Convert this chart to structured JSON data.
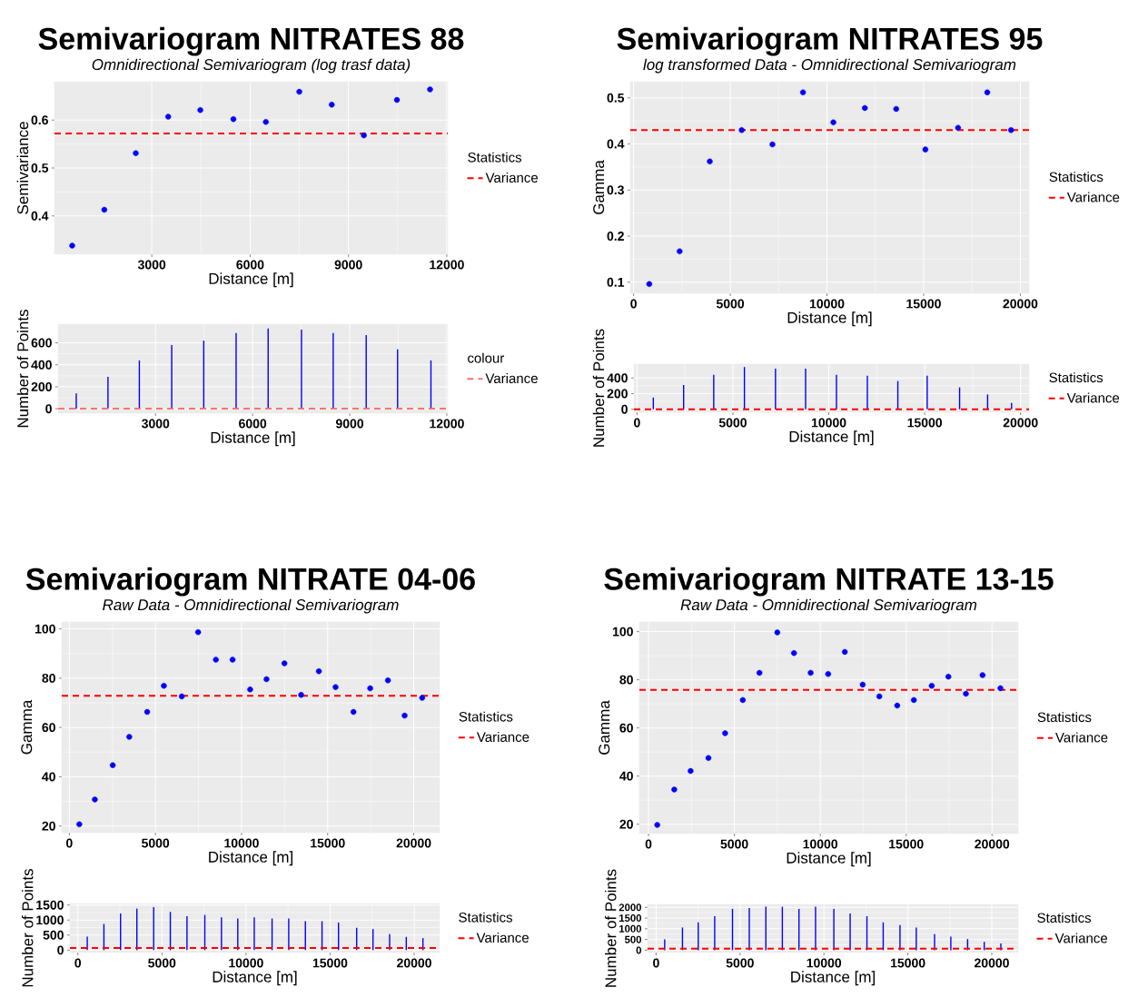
{
  "chart_data": [
    {
      "type": "scatter",
      "title": "Semivariogram NITRATES 88",
      "subtitle": "Omnidirectional Semivariogram (log trasf data)",
      "xlabel": "Distance [m]",
      "ylabel": "Semivariance",
      "legend_title": "Statistics",
      "legend": "right",
      "grid": true,
      "marker": "circle",
      "color": "#0000ff",
      "x": [
        570,
        1550,
        2510,
        3500,
        4480,
        5490,
        6480,
        7500,
        8490,
        9470,
        10480,
        11490
      ],
      "values": [
        0.338,
        0.413,
        0.531,
        0.607,
        0.621,
        0.602,
        0.596,
        0.659,
        0.632,
        0.568,
        0.642,
        0.664
      ],
      "xlim": [
        30,
        12030
      ],
      "ylim": [
        0.32,
        0.68
      ],
      "xticks": [
        3000,
        6000,
        9000,
        12000
      ],
      "yticks": [
        0.4,
        0.5,
        0.6
      ],
      "ref_lines": [
        {
          "axis": "y",
          "value": 0.572,
          "label": "Variance",
          "color": "#ff0000",
          "line_style": "dashed"
        }
      ]
    },
    {
      "type": "scatter",
      "title": "Semivariogram NITRATES 95",
      "subtitle": "log transformed Data - Omnidirectional Semivariogram",
      "xlabel": "Distance [m]",
      "ylabel": "Gamma",
      "legend_title": "Statistics",
      "legend": "right",
      "grid": true,
      "marker": "circle",
      "color": "#0000ff",
      "x": [
        810,
        2380,
        3940,
        5590,
        7180,
        8760,
        10330,
        11960,
        13580,
        15090,
        16780,
        18290,
        19520
      ],
      "values": [
        0.096,
        0.167,
        0.362,
        0.43,
        0.399,
        0.512,
        0.447,
        0.478,
        0.476,
        0.388,
        0.435,
        0.512,
        0.43
      ],
      "xlim": [
        -170,
        20450
      ],
      "ylim": [
        0.076,
        0.535
      ],
      "xticks": [
        0,
        5000,
        10000,
        15000,
        20000
      ],
      "yticks": [
        0.1,
        0.2,
        0.3,
        0.4,
        0.5
      ],
      "ref_lines": [
        {
          "axis": "y",
          "value": 0.43,
          "label": "Variance",
          "color": "#ff0000",
          "line_style": "dashed"
        }
      ]
    },
    {
      "type": "bar",
      "xlabel": "Distance [m]",
      "ylabel": "Number of Points",
      "legend_title": "colour",
      "legend": "right",
      "grid": true,
      "color": "#0000ff",
      "x": [
        550,
        1530,
        2500,
        3500,
        4490,
        5490,
        6480,
        7510,
        8490,
        9510,
        10480,
        11510
      ],
      "values": [
        140,
        290,
        440,
        580,
        620,
        690,
        730,
        720,
        690,
        670,
        540,
        440
      ],
      "xlim": [
        -10,
        12030
      ],
      "ylim": [
        -40,
        770
      ],
      "xticks": [
        3000,
        6000,
        9000,
        12000
      ],
      "yticks": [
        0,
        200,
        400,
        600
      ],
      "ref_lines": [
        {
          "axis": "y",
          "value": 0.572,
          "label": "Variance",
          "color": "#f8766d",
          "line_style": "dashed"
        }
      ]
    },
    {
      "type": "bar",
      "xlabel": "Distance [m]",
      "ylabel": "Number of Points",
      "legend_title": "Statistics",
      "legend": "right",
      "grid": true,
      "color": "#0000ff",
      "x": [
        850,
        2430,
        4000,
        5600,
        7220,
        8790,
        10400,
        12010,
        13600,
        15130,
        16820,
        18280,
        19530
      ],
      "values": [
        150,
        310,
        440,
        540,
        520,
        520,
        440,
        430,
        360,
        430,
        280,
        190,
        80
      ],
      "xlim": [
        -160,
        20440
      ],
      "ylim": [
        -38,
        577
      ],
      "xticks": [
        0,
        5000,
        10000,
        15000,
        20000
      ],
      "yticks": [
        0,
        200,
        400
      ],
      "ref_lines": [
        {
          "axis": "y",
          "value": 0.43,
          "label": "Variance",
          "color": "#ff0000",
          "line_style": "dashed"
        }
      ]
    },
    {
      "type": "scatter",
      "title": "Semivariogram NITRATE 04-06",
      "subtitle": "Raw Data - Omnidirectional Semivariogram",
      "xlabel": "Distance [m]",
      "ylabel": "Gamma",
      "legend_title": "Statistics",
      "legend": "right",
      "grid": true,
      "marker": "circle",
      "color": "#0000ff",
      "x": [
        580,
        1480,
        2520,
        3480,
        4520,
        5490,
        6530,
        7480,
        8510,
        9480,
        10500,
        11450,
        12490,
        13460,
        14490,
        15460,
        16500,
        17470,
        18500,
        19470,
        20490
      ],
      "values": [
        20.7,
        30.8,
        44.7,
        56.2,
        66.3,
        76.9,
        72.6,
        98.7,
        87.5,
        87.5,
        75.4,
        79.6,
        86.0,
        73.2,
        82.8,
        76.4,
        66.3,
        75.9,
        79.1,
        64.8,
        72.0
      ],
      "xlim": [
        -440,
        21500
      ],
      "ylim": [
        17.3,
        102.8
      ],
      "xticks": [
        0,
        5000,
        10000,
        15000,
        20000
      ],
      "yticks": [
        20,
        40,
        60,
        80,
        100
      ],
      "ref_lines": [
        {
          "axis": "y",
          "value": 72.9,
          "label": "Variance",
          "color": "#ff0000",
          "line_style": "dashed"
        }
      ]
    },
    {
      "type": "scatter",
      "title": "Semivariogram NITRATE 13-15",
      "subtitle": "Raw Data - Omnidirectional Semivariogram",
      "xlabel": "Distance [m]",
      "ylabel": "Gamma",
      "legend_title": "Statistics",
      "legend": "right",
      "grid": true,
      "marker": "circle",
      "color": "#0000ff",
      "x": [
        510,
        1500,
        2450,
        3490,
        4460,
        5490,
        6460,
        7500,
        8470,
        9440,
        10460,
        11430,
        12470,
        13440,
        14480,
        15450,
        16490,
        17460,
        18480,
        19450,
        20490
      ],
      "values": [
        19.7,
        34.4,
        42.1,
        47.5,
        57.8,
        71.6,
        82.9,
        99.7,
        91.1,
        82.9,
        82.4,
        91.6,
        78.0,
        73.1,
        69.3,
        71.6,
        77.5,
        81.3,
        74.2,
        81.9,
        76.5
      ],
      "xlim": [
        -530,
        21520
      ],
      "ylim": [
        16.1,
        104.0
      ],
      "xticks": [
        0,
        5000,
        10000,
        15000,
        20000
      ],
      "yticks": [
        20,
        40,
        60,
        80,
        100
      ],
      "ref_lines": [
        {
          "axis": "y",
          "value": 75.8,
          "label": "Variance",
          "color": "#ff0000",
          "line_style": "dashed"
        }
      ]
    },
    {
      "type": "bar",
      "xlabel": "Distance [m]",
      "ylabel": "Number of Points",
      "legend_title": "Statistics",
      "legend": "right",
      "grid": true,
      "color": "#0000ff",
      "x": [
        560,
        1550,
        2540,
        3510,
        4510,
        5500,
        6490,
        7550,
        8540,
        9510,
        10490,
        11550,
        12540,
        13530,
        14520,
        15500,
        16580,
        17550,
        18540,
        19530,
        20520
      ],
      "values": [
        450,
        870,
        1220,
        1380,
        1430,
        1270,
        1130,
        1170,
        1090,
        1050,
        1090,
        1050,
        1050,
        960,
        960,
        920,
        740,
        700,
        530,
        440,
        400
      ],
      "xlim": [
        -470,
        21510
      ],
      "ylim": [
        -80,
        1550
      ],
      "xticks": [
        0,
        5000,
        10000,
        15000,
        20000
      ],
      "yticks": [
        0,
        500,
        1000,
        1500
      ],
      "ref_lines": [
        {
          "axis": "y",
          "value": 72.9,
          "label": "Variance",
          "color": "#ff0000",
          "line_style": "dashed"
        }
      ]
    },
    {
      "type": "bar",
      "xlabel": "Distance [m]",
      "ylabel": "Number of Points",
      "legend_title": "Statistics",
      "legend": "right",
      "grid": true,
      "color": "#0000ff",
      "x": [
        510,
        1570,
        2510,
        3490,
        4550,
        5550,
        6540,
        7520,
        8510,
        9500,
        10590,
        11560,
        12560,
        13530,
        14530,
        15500,
        16590,
        17560,
        18560,
        19550,
        20540
      ],
      "values": [
        510,
        1060,
        1300,
        1590,
        1930,
        1970,
        2030,
        2030,
        1930,
        2030,
        1930,
        1720,
        1590,
        1300,
        1170,
        1060,
        750,
        630,
        520,
        390,
        320
      ],
      "xlim": [
        -510,
        21570
      ],
      "ylim": [
        -110,
        2140
      ],
      "xticks": [
        0,
        5000,
        10000,
        15000,
        20000
      ],
      "yticks": [
        0,
        500,
        1000,
        1500,
        2000
      ],
      "ref_lines": [
        {
          "axis": "y",
          "value": 75.8,
          "label": "Variance",
          "color": "#ff0000",
          "line_style": "dashed"
        }
      ]
    }
  ]
}
